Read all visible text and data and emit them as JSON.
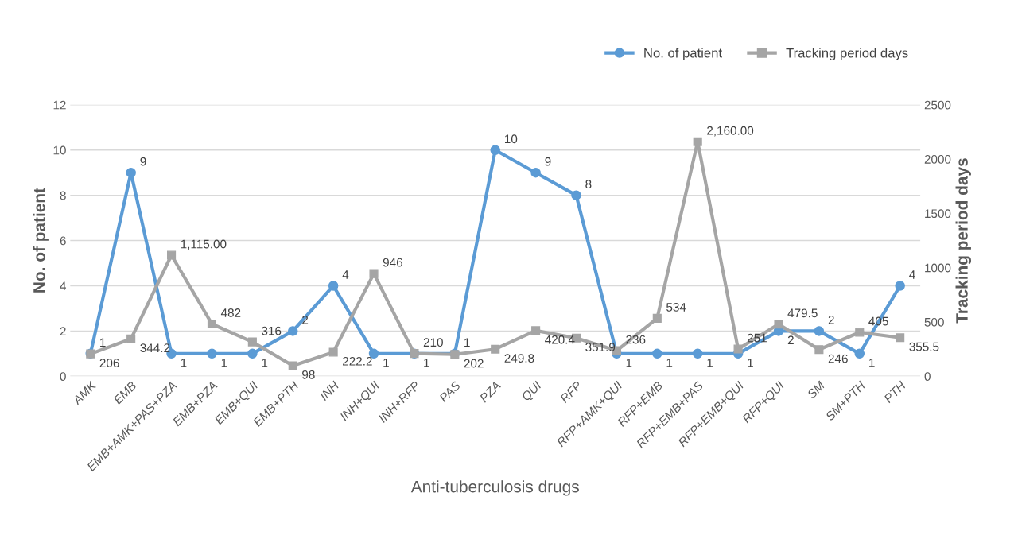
{
  "chart_data": {
    "type": "line",
    "xlabel": "Anti-tuberculosis drugs",
    "ylabel": "No. of patient",
    "y2label": "Tracking period days",
    "categories": [
      "AMK",
      "EMB",
      "EMB+AMK+PAS+PZA",
      "EMB+PZA",
      "EMB+QUI",
      "EMB+PTH",
      "INH",
      "INH+QUI",
      "INH+RFP",
      "PAS",
      "PZA",
      "QUI",
      "RFP",
      "RFP+AMK+QUI",
      "RFP+EMB",
      "RFP+EMB+PAS",
      "RFP+EMB+QUI",
      "RFP+QUI",
      "SM",
      "SM+PTH",
      "PTH"
    ],
    "series": [
      {
        "name": "No. of patient",
        "color": "#5b9bd5",
        "marker": "circle",
        "values": [
          1,
          9,
          1,
          1,
          1,
          2,
          4,
          1,
          1,
          1,
          10,
          9,
          8,
          1,
          1,
          1,
          1,
          2,
          2,
          1,
          4
        ],
        "value_labels": [
          "1",
          "9",
          "1",
          "1",
          "1",
          "2",
          "4",
          "1",
          "1",
          "1",
          "10",
          "9",
          "8",
          "1",
          "1",
          "1",
          "1",
          "2",
          "2",
          "1",
          "4"
        ]
      },
      {
        "name": "Tracking period days",
        "color": "#a5a5a5",
        "marker": "square",
        "axis": "y2",
        "values": [
          206,
          344.2,
          1115,
          482,
          316,
          98,
          222.2,
          946,
          210,
          202,
          249.8,
          420.4,
          351.9,
          236,
          534,
          2160,
          251,
          479.5,
          246,
          405,
          355.5
        ],
        "value_labels": [
          "206",
          "344.2",
          "1,115.00",
          "482",
          "316",
          "98",
          "222.2",
          "946",
          "210",
          "202",
          "249.8",
          "420.4",
          "351.9",
          "236",
          "534",
          "2,160.00",
          "251",
          "479.5",
          "246",
          "405",
          "355.5"
        ]
      }
    ],
    "ylim": [
      0,
      12
    ],
    "yticks": [
      0,
      2,
      4,
      6,
      8,
      10,
      12
    ],
    "y2lim": [
      0,
      2500
    ],
    "y2ticks": [
      0,
      500,
      1000,
      1500,
      2000,
      2500
    ],
    "grid": "y",
    "legend": "top right"
  }
}
